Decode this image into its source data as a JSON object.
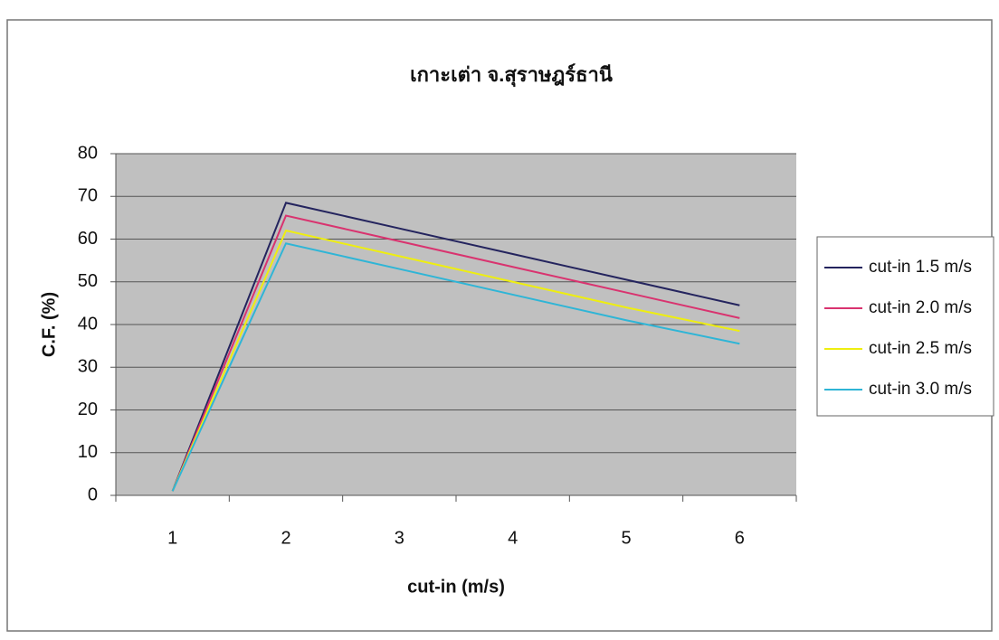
{
  "chart_data": {
    "type": "line",
    "title": "เกาะเต่า จ.สุราษฎร์ธานี",
    "x_label": "cut-in (m/s)",
    "y_label": "C.F. (%)",
    "categories": [
      "1",
      "2",
      "3",
      "4",
      "5",
      "6"
    ],
    "series": [
      {
        "name": "cut-in 1.5 m/s",
        "color": "#24245e",
        "values": [
          1,
          68.5,
          62.5,
          56.5,
          50.5,
          44.5
        ]
      },
      {
        "name": "cut-in 2.0 m/s",
        "color": "#d9336f",
        "values": [
          1,
          65.5,
          59.5,
          53.5,
          47.5,
          41.5
        ]
      },
      {
        "name": "cut-in 2.5 m/s",
        "color": "#eeee10",
        "values": [
          1,
          62,
          56,
          50,
          44,
          38.5
        ]
      },
      {
        "name": "cut-in 3.0 m/s",
        "color": "#2fb5d6",
        "values": [
          1,
          59,
          53,
          47,
          41,
          35.5
        ]
      }
    ],
    "ylim": [
      0,
      80
    ],
    "yticks": [
      0,
      10,
      20,
      30,
      40,
      50,
      60,
      70,
      80
    ],
    "grid": true,
    "legend": "right"
  }
}
